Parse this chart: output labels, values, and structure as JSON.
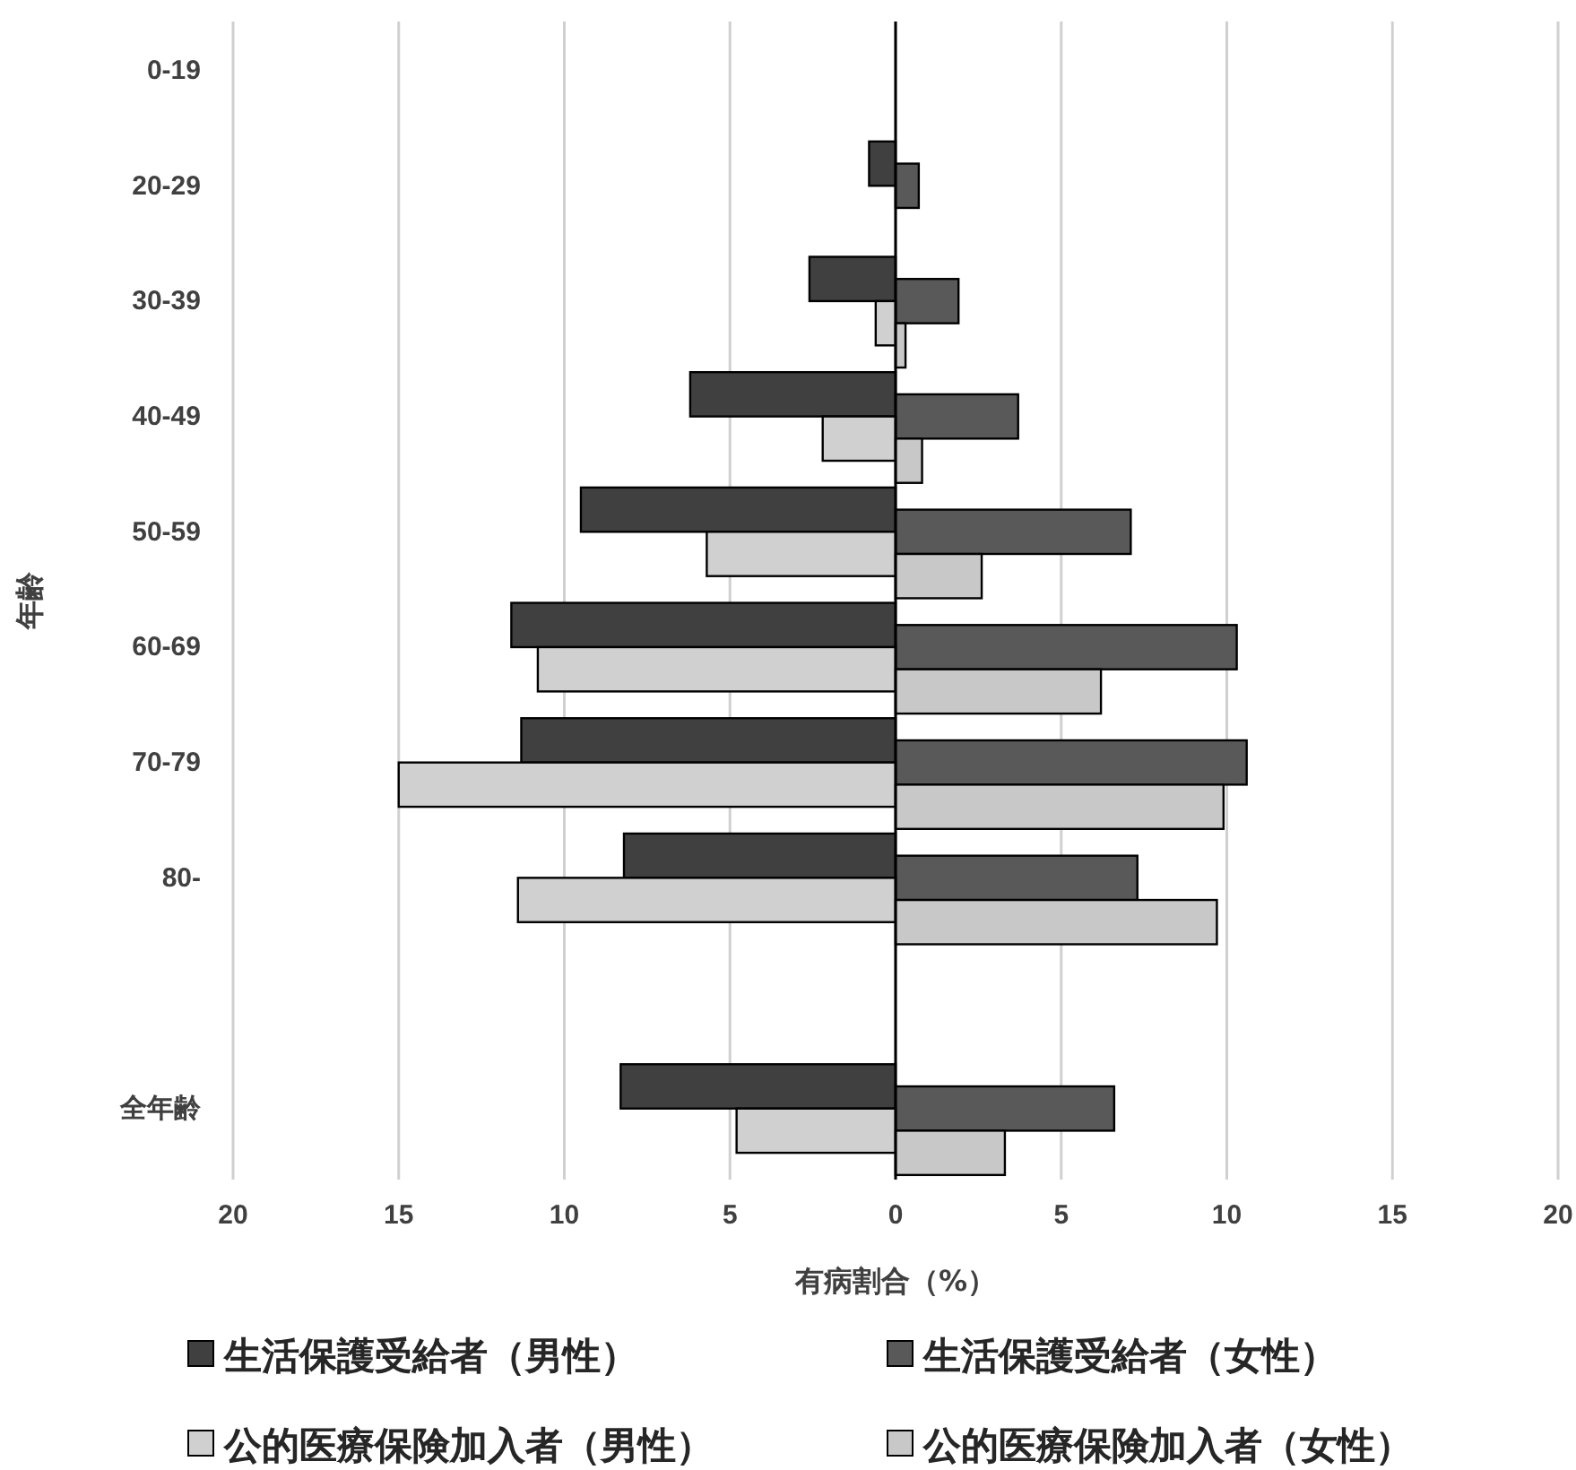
{
  "chart_data": {
    "type": "bar",
    "orientation": "horizontal",
    "xlabel": "有病割合（%）",
    "ylabel": "年齢",
    "categories": [
      "0-19",
      "20-29",
      "30-39",
      "40-49",
      "50-59",
      "60-69",
      "70-79",
      "80-",
      null,
      "全年齢"
    ],
    "series": [
      {
        "name": "生活保護受給者（男性）",
        "color": "#404040",
        "values": [
          0,
          -0.8,
          -2.6,
          -6.2,
          -9.5,
          -11.6,
          -11.3,
          -8.2,
          null,
          -8.3
        ]
      },
      {
        "name": "生活保護受給者（女性）",
        "color": "#595959",
        "values": [
          0,
          0.7,
          1.9,
          3.7,
          7.1,
          10.3,
          10.6,
          7.3,
          null,
          6.6
        ]
      },
      {
        "name": "公的医療保険加入者（男性）",
        "color": "#d0d0d0",
        "values": [
          0,
          null,
          -0.6,
          -2.2,
          -5.7,
          -10.8,
          -15.0,
          -11.4,
          null,
          -4.8
        ]
      },
      {
        "name": "公的医療保険加入者（女性）",
        "color": "#c8c8c8",
        "values": [
          0,
          null,
          0.3,
          0.8,
          2.6,
          6.2,
          9.9,
          9.7,
          null,
          3.3
        ]
      }
    ],
    "xlim": [
      -20,
      20
    ],
    "xticks": [
      {
        "value": -20,
        "label": "20"
      },
      {
        "value": -15,
        "label": "15"
      },
      {
        "value": -10,
        "label": "10"
      },
      {
        "value": -5,
        "label": "5"
      },
      0,
      5,
      10,
      15,
      20
    ],
    "grid": "x",
    "legend": "bottom"
  }
}
